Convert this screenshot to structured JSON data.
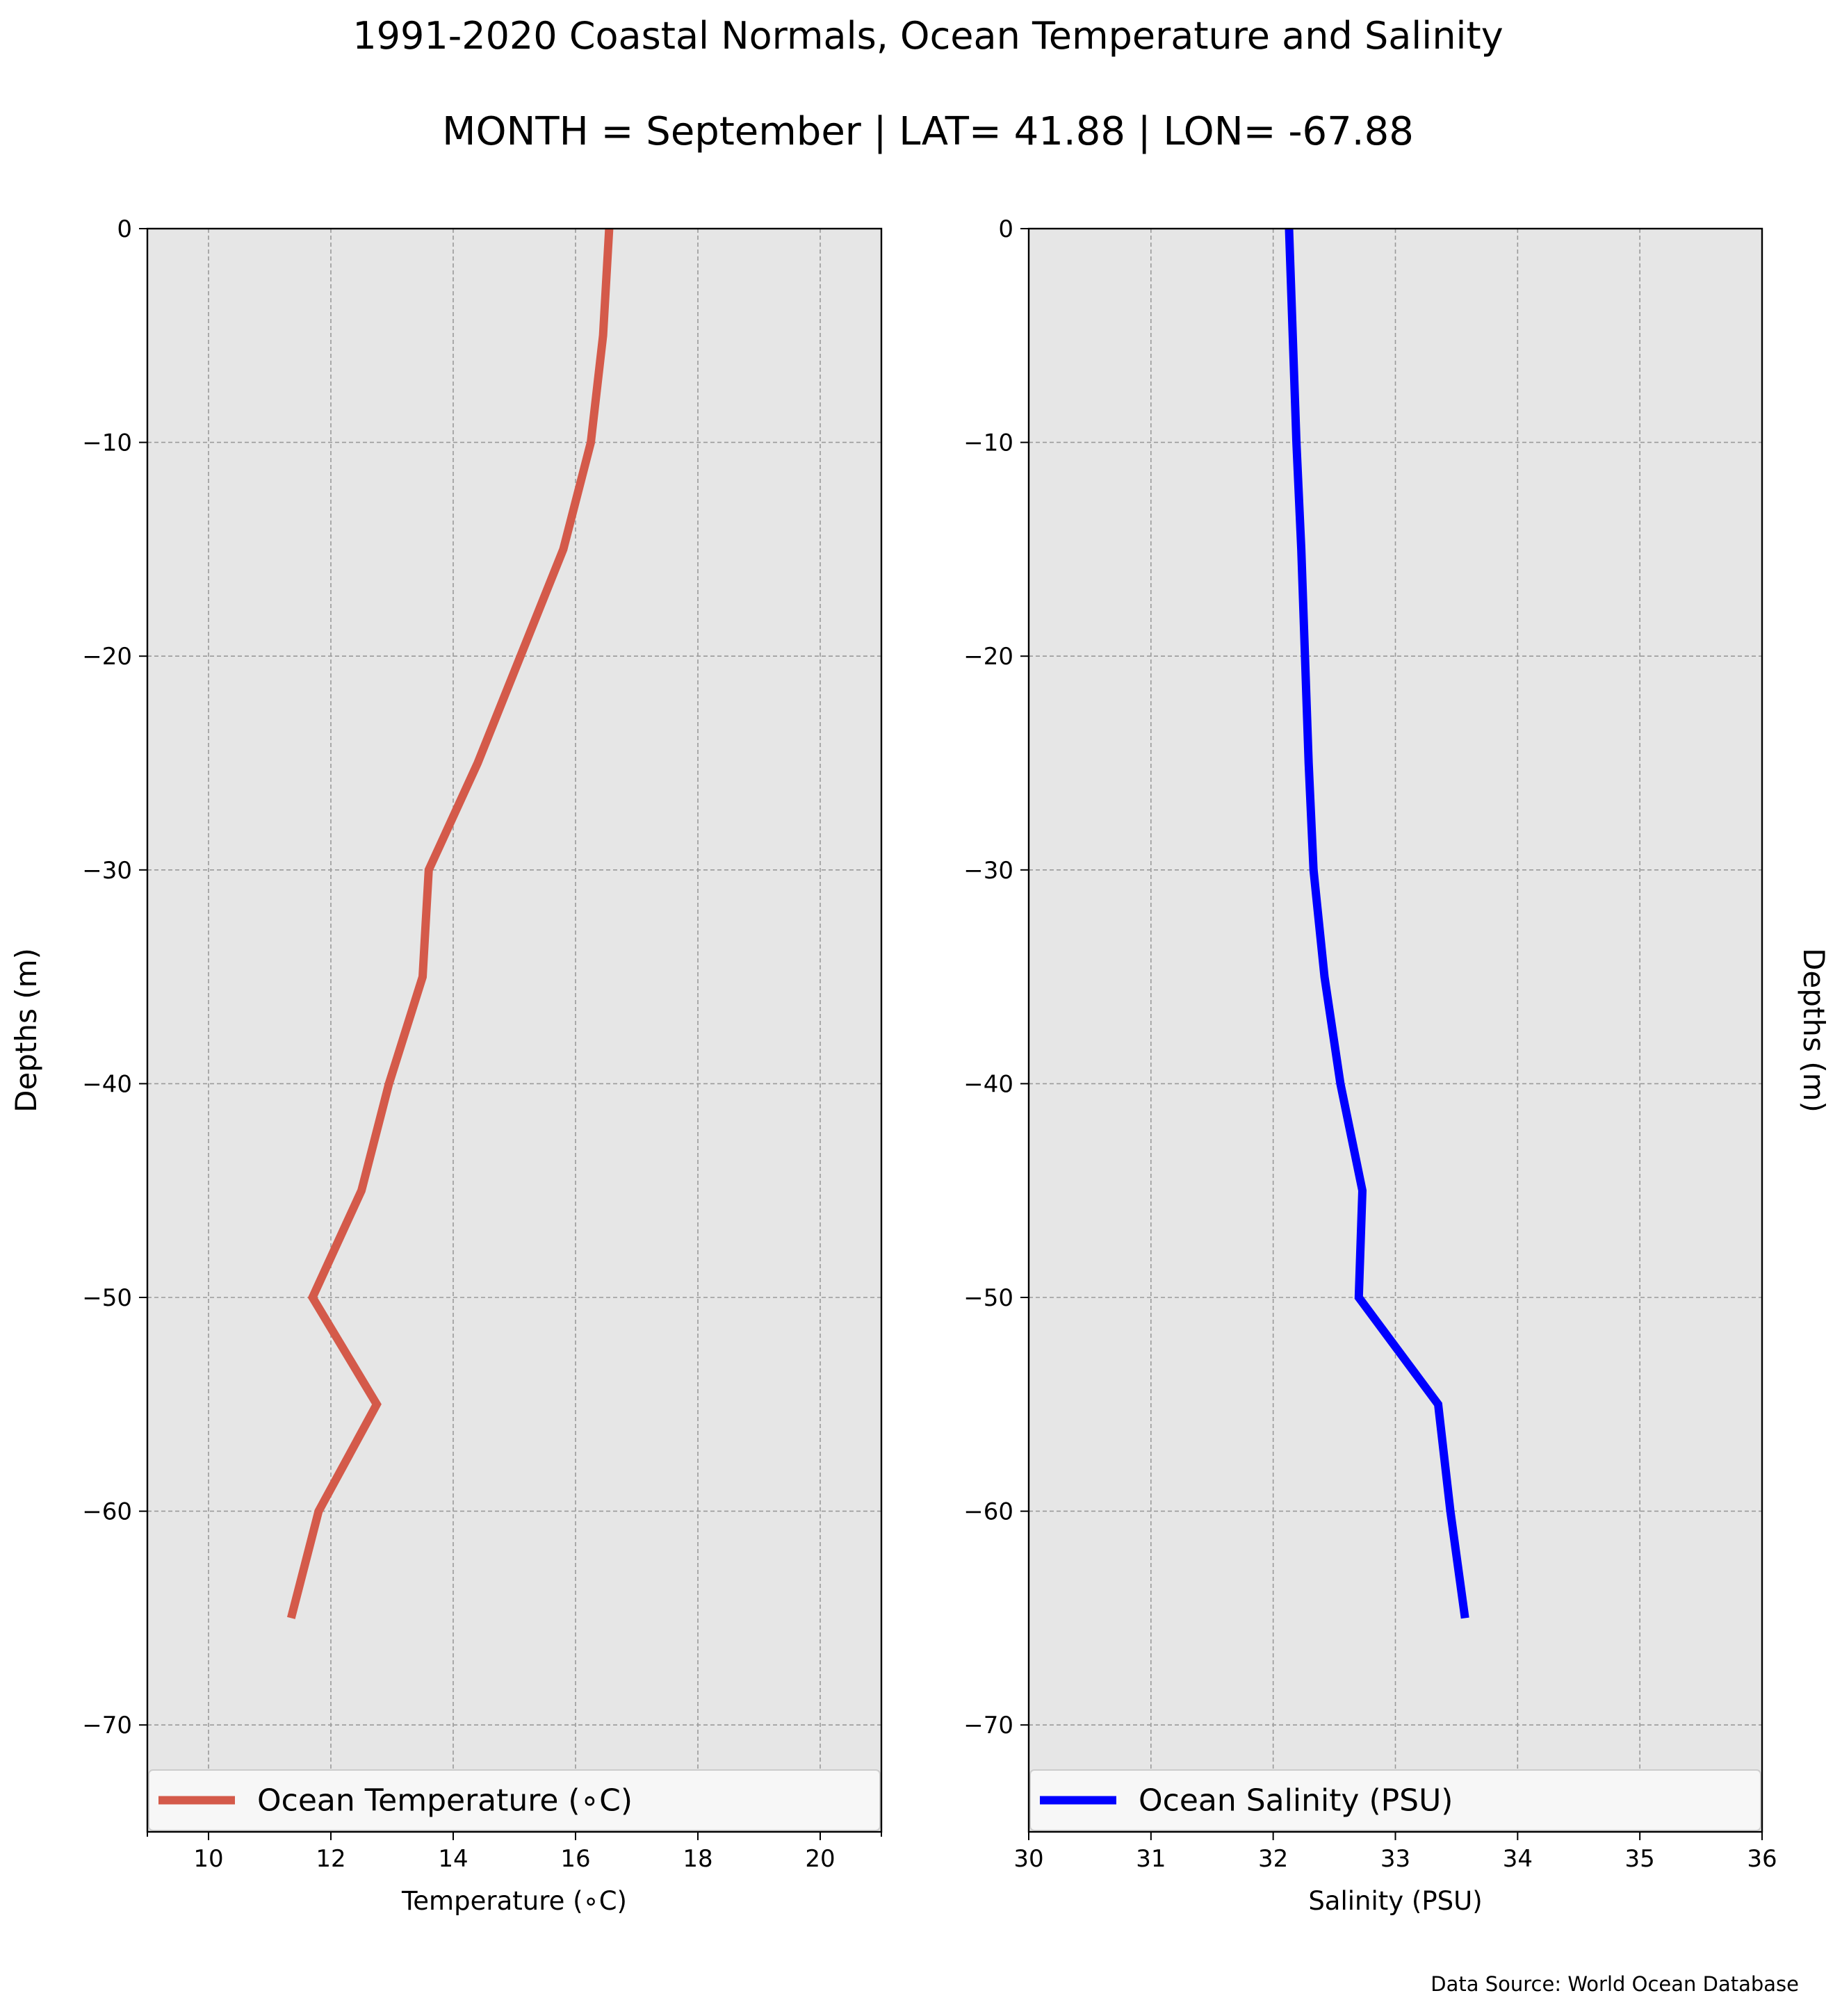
{
  "figure": {
    "title": "1991-2020 Coastal Normals, Ocean Temperature and Salinity",
    "subtitle": "MONTH = September | LAT= 41.88 | LON= -67.88",
    "footer": "Data Source: World Ocean Database"
  },
  "chart_data": [
    {
      "type": "line",
      "orientation": "vertical-profile",
      "xlabel": "Temperature (∘C)",
      "ylabel": "Depths (m)",
      "xlim": [
        9,
        21
      ],
      "ylim": [
        -75,
        0
      ],
      "xticks": [
        10,
        12,
        14,
        16,
        18,
        20
      ],
      "yticks": [
        0,
        -10,
        -20,
        -30,
        -40,
        -50,
        -60,
        -70
      ],
      "ytick_labels": [
        "0",
        "−10",
        "−20",
        "−30",
        "−40",
        "−50",
        "−60",
        "−70"
      ],
      "grid": true,
      "legend_position": "bottom",
      "series": [
        {
          "name": "Ocean Temperature (∘C)",
          "color": "#d45a4a",
          "x": [
            16.55,
            16.45,
            16.25,
            15.8,
            15.1,
            14.4,
            13.6,
            13.5,
            12.95,
            12.5,
            11.7,
            12.75,
            11.8,
            11.35
          ],
          "y": [
            0,
            -5,
            -10,
            -15,
            -20,
            -25,
            -30,
            -35,
            -40,
            -45,
            -50,
            -55,
            -60,
            -65
          ]
        }
      ]
    },
    {
      "type": "line",
      "orientation": "vertical-profile",
      "xlabel": "Salinity (PSU)",
      "ylabel": "Depths (m)",
      "xlim": [
        30,
        36
      ],
      "ylim": [
        -75,
        0
      ],
      "xticks": [
        30,
        31,
        32,
        33,
        34,
        35,
        36
      ],
      "yticks": [
        0,
        -10,
        -20,
        -30,
        -40,
        -50,
        -60,
        -70
      ],
      "ytick_labels": [
        "0",
        "−10",
        "−20",
        "−30",
        "−40",
        "−50",
        "−60",
        "−70"
      ],
      "grid": true,
      "legend_position": "bottom",
      "series": [
        {
          "name": "Ocean Salinity (PSU)",
          "color": "#0000ff",
          "x": [
            32.13,
            32.16,
            32.19,
            32.23,
            32.26,
            32.29,
            32.33,
            32.42,
            32.55,
            32.73,
            32.7,
            33.35,
            33.45,
            33.57
          ],
          "y": [
            0,
            -5,
            -10,
            -15,
            -20,
            -25,
            -30,
            -35,
            -40,
            -45,
            -50,
            -55,
            -60,
            -65
          ]
        }
      ]
    }
  ]
}
